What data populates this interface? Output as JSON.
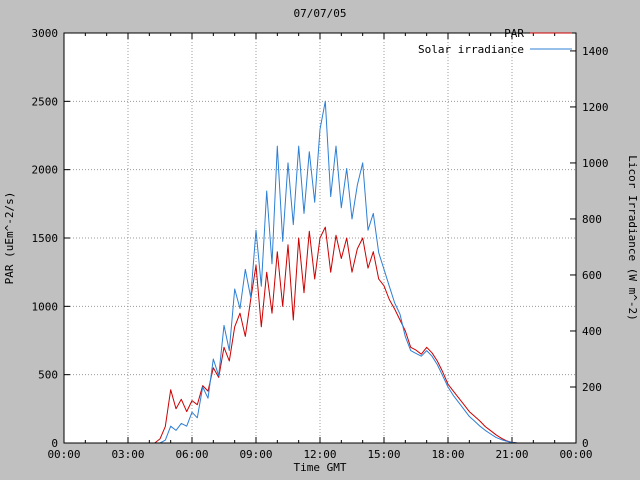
{
  "chart_data": {
    "type": "line",
    "title": "07/07/05",
    "xlabel": "Time GMT",
    "ylabel_left": "PAR (uEm^-2/s)",
    "ylabel_right": "Licor Irradiance (W m^-2)",
    "x_ticks": [
      "00:00",
      "03:00",
      "06:00",
      "09:00",
      "12:00",
      "15:00",
      "18:00",
      "21:00",
      "00:00"
    ],
    "y_left_ticks": [
      0,
      500,
      1000,
      1500,
      2000,
      2500,
      3000
    ],
    "y_right_ticks": [
      0,
      200,
      400,
      600,
      800,
      1000,
      1200,
      1400
    ],
    "x_range_hours": [
      0,
      24
    ],
    "y_left_range": [
      0,
      3000
    ],
    "y_right_range": [
      0,
      1464
    ],
    "grid": "dotted",
    "legend_position": "top-right-inside",
    "x_start_hour": 0,
    "x_step_hours": 0.25,
    "colors": {
      "par": "#cc0000",
      "solar": "#2e7fd4",
      "grid": "#999999",
      "background": "#c0c0c0",
      "plot_background": "#ffffff",
      "border": "#000000",
      "text": "#000000"
    },
    "series": [
      {
        "name": "PAR",
        "axis": "left",
        "units": "uEm^-2/s",
        "color": "#cc0000",
        "values": [
          0,
          0,
          0,
          0,
          0,
          0,
          0,
          0,
          0,
          0,
          0,
          0,
          0,
          0,
          0,
          0,
          0,
          0,
          30,
          120,
          390,
          250,
          320,
          230,
          310,
          280,
          420,
          380,
          550,
          480,
          700,
          600,
          850,
          950,
          780,
          1050,
          1300,
          850,
          1250,
          950,
          1400,
          1000,
          1450,
          900,
          1500,
          1100,
          1550,
          1200,
          1500,
          1580,
          1250,
          1520,
          1350,
          1500,
          1250,
          1420,
          1500,
          1280,
          1400,
          1200,
          1150,
          1050,
          980,
          900,
          820,
          700,
          680,
          650,
          700,
          660,
          600,
          520,
          430,
          380,
          330,
          280,
          230,
          195,
          160,
          120,
          90,
          60,
          35,
          15,
          5,
          0,
          0,
          0,
          0,
          0,
          0,
          0,
          0,
          0,
          0,
          0,
          0
        ]
      },
      {
        "name": "Solar irradiance",
        "axis": "right",
        "units": "W m^-2",
        "color": "#2e7fd4",
        "values": [
          0,
          0,
          0,
          0,
          0,
          0,
          0,
          0,
          0,
          0,
          0,
          0,
          0,
          0,
          0,
          0,
          0,
          0,
          0,
          10,
          60,
          45,
          70,
          60,
          110,
          90,
          200,
          160,
          300,
          240,
          420,
          330,
          550,
          480,
          620,
          520,
          760,
          560,
          900,
          640,
          1060,
          720,
          1000,
          780,
          1060,
          820,
          1040,
          860,
          1120,
          1220,
          880,
          1060,
          840,
          980,
          800,
          920,
          1000,
          760,
          820,
          680,
          620,
          560,
          500,
          460,
          380,
          330,
          320,
          310,
          330,
          310,
          280,
          240,
          200,
          170,
          145,
          120,
          95,
          78,
          60,
          45,
          32,
          20,
          12,
          6,
          2,
          0,
          0,
          0,
          0,
          0,
          0,
          0,
          0,
          0,
          0,
          0,
          0
        ]
      }
    ]
  }
}
